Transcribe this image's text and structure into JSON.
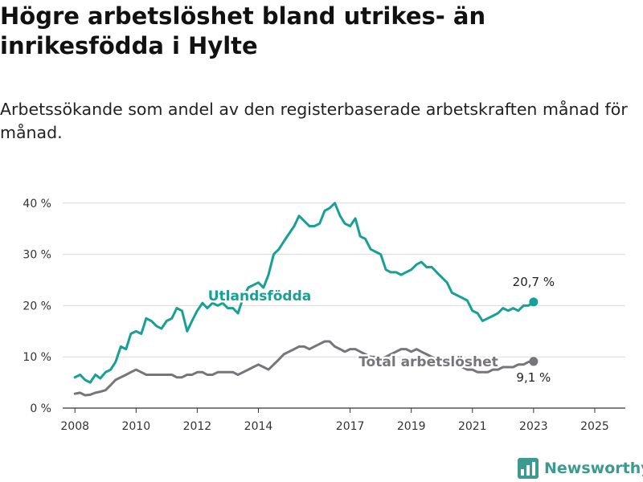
{
  "header": {
    "title": "Högre arbetslöshet bland utrikes- än inrikesfödda i Hylte",
    "subtitle": "Arbetssökande som andel av den registerbaserade arbetskraften månad för månad."
  },
  "brand": {
    "name": "Newsworthy",
    "color": "#3d9a8f",
    "icon": "bar-chart-icon"
  },
  "chart_data": {
    "type": "line",
    "title": "Högre arbetslöshet bland utrikes- än inrikesfödda i Hylte",
    "subtitle": "Arbetssökande som andel av den registerbaserade arbetskraften månad för månad.",
    "xlabel": "",
    "ylabel": "",
    "x_unit": "year",
    "x_ticks": [
      2008,
      2010,
      2012,
      2014,
      2017,
      2019,
      2021,
      2023,
      2025
    ],
    "y_ticks": [
      0,
      10,
      20,
      30,
      40
    ],
    "y_tick_labels": [
      "0 %",
      "10 %",
      "20 %",
      "30 %",
      "40 %"
    ],
    "xlim": [
      2007.6,
      2026.0
    ],
    "ylim": [
      0,
      42
    ],
    "grid": "horizontal",
    "legend": "direct labels on lines",
    "series": [
      {
        "name": "Utlandsfödda",
        "color": "#16a096",
        "end_label": "20,7 %",
        "points": [
          [
            2008.0,
            6.0
          ],
          [
            2008.17,
            6.5
          ],
          [
            2008.33,
            5.5
          ],
          [
            2008.5,
            5.0
          ],
          [
            2008.67,
            6.5
          ],
          [
            2008.83,
            5.8
          ],
          [
            2009.0,
            7.0
          ],
          [
            2009.17,
            7.5
          ],
          [
            2009.33,
            9.0
          ],
          [
            2009.5,
            12.0
          ],
          [
            2009.67,
            11.5
          ],
          [
            2009.83,
            14.5
          ],
          [
            2010.0,
            15.0
          ],
          [
            2010.17,
            14.5
          ],
          [
            2010.33,
            17.5
          ],
          [
            2010.5,
            17.0
          ],
          [
            2010.67,
            16.0
          ],
          [
            2010.83,
            15.5
          ],
          [
            2011.0,
            17.0
          ],
          [
            2011.17,
            17.5
          ],
          [
            2011.33,
            19.5
          ],
          [
            2011.5,
            19.0
          ],
          [
            2011.67,
            15.0
          ],
          [
            2011.83,
            17.0
          ],
          [
            2012.0,
            19.0
          ],
          [
            2012.17,
            20.5
          ],
          [
            2012.33,
            19.5
          ],
          [
            2012.5,
            20.5
          ],
          [
            2012.67,
            20.0
          ],
          [
            2012.83,
            20.5
          ],
          [
            2013.0,
            19.5
          ],
          [
            2013.17,
            19.5
          ],
          [
            2013.33,
            18.5
          ],
          [
            2013.5,
            21.5
          ],
          [
            2013.67,
            23.5
          ],
          [
            2013.83,
            24.0
          ],
          [
            2014.0,
            24.5
          ],
          [
            2014.17,
            23.5
          ],
          [
            2014.33,
            26.0
          ],
          [
            2014.5,
            30.0
          ],
          [
            2014.67,
            31.0
          ],
          [
            2014.83,
            32.5
          ],
          [
            2015.0,
            34.0
          ],
          [
            2015.17,
            35.5
          ],
          [
            2015.33,
            37.5
          ],
          [
            2015.5,
            36.5
          ],
          [
            2015.67,
            35.5
          ],
          [
            2015.83,
            35.5
          ],
          [
            2016.0,
            36.0
          ],
          [
            2016.17,
            38.5
          ],
          [
            2016.33,
            39.0
          ],
          [
            2016.5,
            40.0
          ],
          [
            2016.67,
            37.5
          ],
          [
            2016.83,
            36.0
          ],
          [
            2017.0,
            35.5
          ],
          [
            2017.17,
            37.0
          ],
          [
            2017.33,
            33.5
          ],
          [
            2017.5,
            33.0
          ],
          [
            2017.67,
            31.0
          ],
          [
            2017.83,
            30.5
          ],
          [
            2018.0,
            30.0
          ],
          [
            2018.17,
            27.0
          ],
          [
            2018.33,
            26.5
          ],
          [
            2018.5,
            26.5
          ],
          [
            2018.67,
            26.0
          ],
          [
            2018.83,
            26.5
          ],
          [
            2019.0,
            27.0
          ],
          [
            2019.17,
            28.0
          ],
          [
            2019.33,
            28.5
          ],
          [
            2019.5,
            27.5
          ],
          [
            2019.67,
            27.5
          ],
          [
            2019.83,
            26.5
          ],
          [
            2020.0,
            25.5
          ],
          [
            2020.17,
            24.5
          ],
          [
            2020.33,
            22.5
          ],
          [
            2020.5,
            22.0
          ],
          [
            2020.67,
            21.5
          ],
          [
            2020.83,
            21.0
          ],
          [
            2021.0,
            19.0
          ],
          [
            2021.17,
            18.5
          ],
          [
            2021.33,
            17.0
          ],
          [
            2021.5,
            17.5
          ],
          [
            2021.67,
            18.0
          ],
          [
            2021.83,
            18.5
          ],
          [
            2022.0,
            19.5
          ],
          [
            2022.17,
            19.0
          ],
          [
            2022.33,
            19.5
          ],
          [
            2022.5,
            19.0
          ],
          [
            2022.67,
            20.0
          ],
          [
            2022.83,
            20.0
          ],
          [
            2023.0,
            20.7
          ]
        ]
      },
      {
        "name": "Total arbetslöshet",
        "color": "#77757a",
        "end_label": "9,1 %",
        "points": [
          [
            2008.0,
            2.8
          ],
          [
            2008.17,
            3.0
          ],
          [
            2008.33,
            2.5
          ],
          [
            2008.5,
            2.6
          ],
          [
            2008.67,
            3.0
          ],
          [
            2008.83,
            3.2
          ],
          [
            2009.0,
            3.5
          ],
          [
            2009.17,
            4.5
          ],
          [
            2009.33,
            5.5
          ],
          [
            2009.5,
            6.0
          ],
          [
            2009.67,
            6.5
          ],
          [
            2009.83,
            7.0
          ],
          [
            2010.0,
            7.5
          ],
          [
            2010.17,
            7.0
          ],
          [
            2010.33,
            6.5
          ],
          [
            2010.5,
            6.5
          ],
          [
            2010.67,
            6.5
          ],
          [
            2010.83,
            6.5
          ],
          [
            2011.0,
            6.5
          ],
          [
            2011.17,
            6.5
          ],
          [
            2011.33,
            6.0
          ],
          [
            2011.5,
            6.0
          ],
          [
            2011.67,
            6.5
          ],
          [
            2011.83,
            6.5
          ],
          [
            2012.0,
            7.0
          ],
          [
            2012.17,
            7.0
          ],
          [
            2012.33,
            6.5
          ],
          [
            2012.5,
            6.5
          ],
          [
            2012.67,
            7.0
          ],
          [
            2012.83,
            7.0
          ],
          [
            2013.0,
            7.0
          ],
          [
            2013.17,
            7.0
          ],
          [
            2013.33,
            6.5
          ],
          [
            2013.5,
            7.0
          ],
          [
            2013.67,
            7.5
          ],
          [
            2013.83,
            8.0
          ],
          [
            2014.0,
            8.5
          ],
          [
            2014.17,
            8.0
          ],
          [
            2014.33,
            7.5
          ],
          [
            2014.5,
            8.5
          ],
          [
            2014.67,
            9.5
          ],
          [
            2014.83,
            10.5
          ],
          [
            2015.0,
            11.0
          ],
          [
            2015.17,
            11.5
          ],
          [
            2015.33,
            12.0
          ],
          [
            2015.5,
            12.0
          ],
          [
            2015.67,
            11.5
          ],
          [
            2015.83,
            12.0
          ],
          [
            2016.0,
            12.5
          ],
          [
            2016.17,
            13.0
          ],
          [
            2016.33,
            13.0
          ],
          [
            2016.5,
            12.0
          ],
          [
            2016.67,
            11.5
          ],
          [
            2016.83,
            11.0
          ],
          [
            2017.0,
            11.5
          ],
          [
            2017.17,
            11.5
          ],
          [
            2017.33,
            11.0
          ],
          [
            2017.5,
            10.5
          ],
          [
            2017.67,
            10.0
          ],
          [
            2017.83,
            10.0
          ],
          [
            2018.0,
            9.5
          ],
          [
            2018.17,
            10.0
          ],
          [
            2018.33,
            10.5
          ],
          [
            2018.5,
            11.0
          ],
          [
            2018.67,
            11.5
          ],
          [
            2018.83,
            11.5
          ],
          [
            2019.0,
            11.0
          ],
          [
            2019.17,
            11.5
          ],
          [
            2019.33,
            11.0
          ],
          [
            2019.5,
            10.5
          ],
          [
            2019.67,
            10.0
          ],
          [
            2019.83,
            9.5
          ],
          [
            2020.0,
            9.0
          ],
          [
            2020.17,
            9.0
          ],
          [
            2020.33,
            8.5
          ],
          [
            2020.5,
            8.5
          ],
          [
            2020.67,
            8.0
          ],
          [
            2020.83,
            7.5
          ],
          [
            2021.0,
            7.5
          ],
          [
            2021.17,
            7.0
          ],
          [
            2021.33,
            7.0
          ],
          [
            2021.5,
            7.0
          ],
          [
            2021.67,
            7.5
          ],
          [
            2021.83,
            7.5
          ],
          [
            2022.0,
            8.0
          ],
          [
            2022.17,
            8.0
          ],
          [
            2022.33,
            8.0
          ],
          [
            2022.5,
            8.5
          ],
          [
            2022.67,
            8.5
          ],
          [
            2022.83,
            9.0
          ],
          [
            2023.0,
            9.1
          ]
        ]
      }
    ]
  }
}
